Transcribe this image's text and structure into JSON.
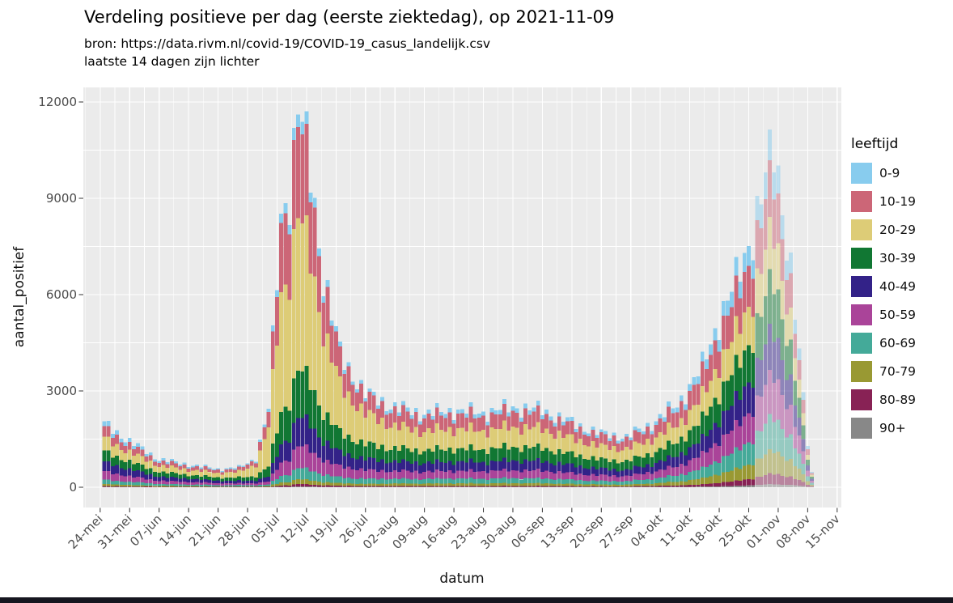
{
  "page": {
    "title": "Verdeling positieve per dag (eerste ziektedag), op 2021-11-09",
    "subtitle_line1": "bron: https://data.rivm.nl/covid-19/COVID-19_casus_landelijk.csv",
    "subtitle_line2": "laatste 14 dagen zijn lichter"
  },
  "chart_data": {
    "type": "bar",
    "stacked": true,
    "title": "Verdeling positieve per dag (eerste ziektedag), op 2021-11-09",
    "subtitle": [
      "bron: https://data.rivm.nl/covid-19/COVID-19_casus_landelijk.csv",
      "laatste 14 dagen zijn lichter"
    ],
    "xlabel": "datum",
    "ylabel": "aantal_positief",
    "legend_title": "leeftijd",
    "legend_position": "right",
    "grid": true,
    "panel_bg": "#EBEBEB",
    "grid_color": "#FFFFFF",
    "tick_color": "#333333",
    "axis_text_color": "#4D4D4D",
    "ylim": [
      0,
      12000
    ],
    "yticks": [
      {
        "label": "0",
        "value": 0
      },
      {
        "label": "3000",
        "value": 3000
      },
      {
        "label": "6000",
        "value": 6000
      },
      {
        "label": "9000",
        "value": 9000
      },
      {
        "label": "12000",
        "value": 12000
      }
    ],
    "yticks_minor": [
      1500,
      4500,
      7500,
      10500
    ],
    "xticks": [
      {
        "label": "24-mei",
        "date": "2021-05-24"
      },
      {
        "label": "31-mei",
        "date": "2021-05-31"
      },
      {
        "label": "07-jun",
        "date": "2021-06-07"
      },
      {
        "label": "14-jun",
        "date": "2021-06-14"
      },
      {
        "label": "21-jun",
        "date": "2021-06-21"
      },
      {
        "label": "28-jun",
        "date": "2021-06-28"
      },
      {
        "label": "05-jul",
        "date": "2021-07-05"
      },
      {
        "label": "12-jul",
        "date": "2021-07-12"
      },
      {
        "label": "19-jul",
        "date": "2021-07-19"
      },
      {
        "label": "26-jul",
        "date": "2021-07-26"
      },
      {
        "label": "02-aug",
        "date": "2021-08-02"
      },
      {
        "label": "09-aug",
        "date": "2021-08-09"
      },
      {
        "label": "16-aug",
        "date": "2021-08-16"
      },
      {
        "label": "23-aug",
        "date": "2021-08-23"
      },
      {
        "label": "30-aug",
        "date": "2021-08-30"
      },
      {
        "label": "06-sep",
        "date": "2021-09-06"
      },
      {
        "label": "13-sep",
        "date": "2021-09-13"
      },
      {
        "label": "20-sep",
        "date": "2021-09-20"
      },
      {
        "label": "27-sep",
        "date": "2021-09-27"
      },
      {
        "label": "04-okt",
        "date": "2021-10-04"
      },
      {
        "label": "11-okt",
        "date": "2021-10-11"
      },
      {
        "label": "18-okt",
        "date": "2021-10-18"
      },
      {
        "label": "25-okt",
        "date": "2021-10-25"
      },
      {
        "label": "01-nov",
        "date": "2021-11-01"
      },
      {
        "label": "08-nov",
        "date": "2021-11-08"
      },
      {
        "label": "15-nov",
        "date": "2021-11-15"
      }
    ],
    "x_domain": [
      "2021-05-20",
      "2021-11-16"
    ],
    "date_range": [
      "2021-05-25",
      "2021-11-09"
    ],
    "light_after_date": "2021-10-26",
    "light_opacity": 0.5,
    "series": [
      {
        "name": "0-9",
        "color": "#88CCEE"
      },
      {
        "name": "10-19",
        "color": "#CC6677"
      },
      {
        "name": "20-29",
        "color": "#DDCC77"
      },
      {
        "name": "30-39",
        "color": "#117733"
      },
      {
        "name": "40-49",
        "color": "#332288"
      },
      {
        "name": "50-59",
        "color": "#AA4499"
      },
      {
        "name": "60-69",
        "color": "#44AA99"
      },
      {
        "name": "70-79",
        "color": "#999933"
      },
      {
        "name": "80-89",
        "color": "#882255"
      },
      {
        "name": "90+",
        "color": "#888888"
      }
    ],
    "values_order": [
      "0-9",
      "10-19",
      "20-29",
      "30-39",
      "40-49",
      "50-59",
      "60-69",
      "70-79",
      "80-89",
      "90+"
    ],
    "keyframes": [
      {
        "date": "2021-05-25",
        "values": [
          160,
          330,
          430,
          340,
          310,
          260,
          140,
          65,
          28,
          10
        ]
      },
      {
        "date": "2021-05-31",
        "values": [
          120,
          240,
          310,
          255,
          225,
          185,
          100,
          48,
          20,
          8
        ]
      },
      {
        "date": "2021-06-07",
        "values": [
          70,
          145,
          200,
          155,
          135,
          105,
          60,
          30,
          12,
          5
        ]
      },
      {
        "date": "2021-06-14",
        "values": [
          55,
          115,
          170,
          125,
          105,
          85,
          50,
          25,
          10,
          4
        ]
      },
      {
        "date": "2021-06-21",
        "values": [
          45,
          92,
          150,
          100,
          80,
          65,
          40,
          18,
          8,
          3
        ]
      },
      {
        "date": "2021-06-26",
        "values": [
          45,
          100,
          190,
          105,
          80,
          62,
          38,
          17,
          7,
          3
        ]
      },
      {
        "date": "2021-06-30",
        "values": [
          55,
          160,
          380,
          140,
          90,
          65,
          40,
          18,
          7,
          3
        ]
      },
      {
        "date": "2021-07-03",
        "values": [
          110,
          500,
          1300,
          330,
          160,
          100,
          55,
          25,
          10,
          4
        ]
      },
      {
        "date": "2021-07-06",
        "values": [
          310,
          2250,
          3900,
          1050,
          600,
          430,
          220,
          95,
          40,
          18
        ]
      },
      {
        "date": "2021-07-08",
        "values": [
          340,
          2450,
          4150,
          1200,
          700,
          520,
          260,
          110,
          48,
          20
        ]
      },
      {
        "date": "2021-07-10",
        "values": [
          420,
          3045,
          5090,
          1575,
          945,
          735,
          370,
          158,
          74,
          32
        ]
      },
      {
        "date": "2021-07-13",
        "values": [
          350,
          2500,
          4100,
          1350,
          850,
          650,
          330,
          140,
          60,
          25
        ]
      },
      {
        "date": "2021-07-16",
        "values": [
          230,
          1600,
          2700,
          950,
          620,
          480,
          250,
          105,
          45,
          18
        ]
      },
      {
        "date": "2021-07-20",
        "values": [
          140,
          900,
          1550,
          640,
          450,
          360,
          190,
          85,
          35,
          13
        ]
      },
      {
        "date": "2021-07-26",
        "values": [
          100,
          560,
          1000,
          480,
          360,
          290,
          160,
          75,
          28,
          10
        ]
      },
      {
        "date": "2021-08-02",
        "values": [
          130,
          500,
          720,
          430,
          310,
          255,
          155,
          80,
          30,
          10
        ]
      },
      {
        "date": "2021-08-09",
        "values": [
          125,
          450,
          640,
          400,
          290,
          240,
          150,
          80,
          30,
          10
        ]
      },
      {
        "date": "2021-08-16",
        "values": [
          135,
          470,
          650,
          420,
          305,
          250,
          160,
          85,
          32,
          11
        ]
      },
      {
        "date": "2021-08-23",
        "values": [
          130,
          455,
          620,
          410,
          300,
          245,
          155,
          82,
          30,
          10
        ]
      },
      {
        "date": "2021-08-30",
        "values": [
          145,
          500,
          660,
          440,
          320,
          260,
          165,
          88,
          33,
          11
        ]
      },
      {
        "date": "2021-09-06",
        "values": [
          140,
          480,
          630,
          430,
          310,
          255,
          160,
          85,
          32,
          11
        ]
      },
      {
        "date": "2021-09-13",
        "values": [
          115,
          400,
          520,
          360,
          260,
          215,
          135,
          72,
          27,
          9
        ]
      },
      {
        "date": "2021-09-20",
        "values": [
          95,
          330,
          430,
          300,
          215,
          180,
          115,
          60,
          23,
          8
        ]
      },
      {
        "date": "2021-09-26",
        "values": [
          90,
          310,
          400,
          280,
          200,
          170,
          110,
          58,
          22,
          8
        ]
      },
      {
        "date": "2021-10-02",
        "values": [
          120,
          390,
          470,
          350,
          260,
          225,
          150,
          82,
          30,
          10
        ]
      },
      {
        "date": "2021-10-08",
        "values": [
          170,
          500,
          560,
          450,
          340,
          300,
          210,
          120,
          45,
          14
        ]
      },
      {
        "date": "2021-10-14",
        "values": [
          280,
          720,
          740,
          640,
          500,
          450,
          320,
          190,
          72,
          22
        ]
      },
      {
        "date": "2021-10-18",
        "values": [
          430,
          1000,
          980,
          880,
          700,
          640,
          470,
          290,
          115,
          35
        ]
      },
      {
        "date": "2021-10-22",
        "values": [
          540,
          1180,
          1130,
          1050,
          850,
          790,
          590,
          375,
          155,
          48
        ]
      },
      {
        "date": "2021-10-26",
        "values": [
          700,
          1420,
          1330,
          1300,
          1080,
          1020,
          790,
          520,
          225,
          68
        ]
      },
      {
        "date": "2021-10-31",
        "values": [
          960,
          1730,
          1600,
          1685,
          1435,
          1380,
          1100,
          755,
          345,
          103
        ]
      },
      {
        "date": "2021-11-02",
        "values": [
          820,
          1430,
          1320,
          1400,
          1200,
          1170,
          940,
          660,
          305,
          90
        ]
      },
      {
        "date": "2021-11-04",
        "values": [
          620,
          1060,
          980,
          1060,
          920,
          910,
          750,
          540,
          255,
          75
        ]
      },
      {
        "date": "2021-11-06",
        "values": [
          360,
          600,
          560,
          620,
          550,
          560,
          470,
          350,
          170,
          52
        ]
      },
      {
        "date": "2021-11-08",
        "values": [
          120,
          190,
          180,
          205,
          185,
          195,
          170,
          130,
          66,
          21
        ]
      },
      {
        "date": "2021-11-09",
        "values": [
          40,
          60,
          58,
          66,
          62,
          66,
          58,
          46,
          24,
          8
        ]
      }
    ],
    "noise": {
      "base": 0.95,
      "a1": 0.08,
      "f1": 2.4,
      "a2": 0.045,
      "f2": 0.8,
      "p2": 1.3
    }
  }
}
